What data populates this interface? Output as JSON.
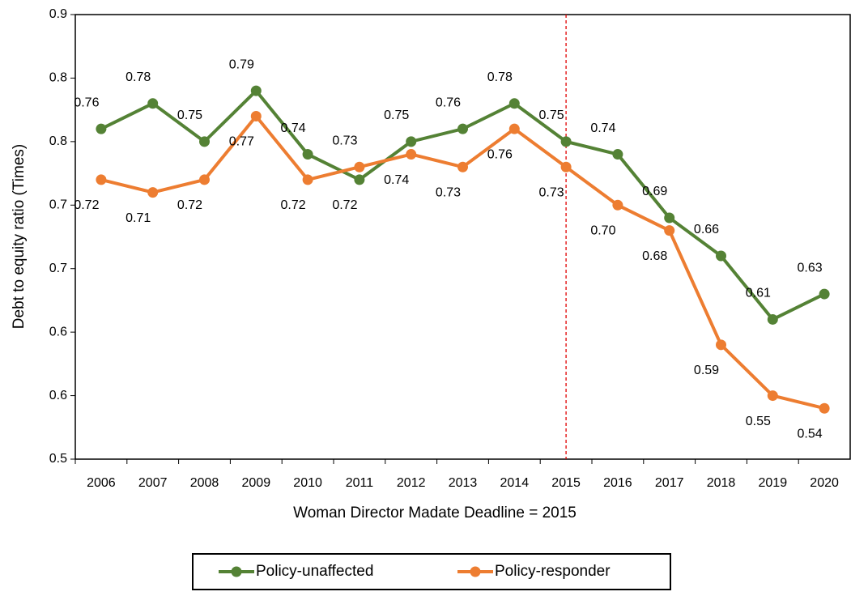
{
  "chart_data": {
    "type": "line",
    "ylabel": "Debt to equity ratio (Times)",
    "xlabel": "Woman Director Madate Deadline = 2015",
    "categories": [
      "2006",
      "2007",
      "2008",
      "2009",
      "2010",
      "2011",
      "2012",
      "2013",
      "2014",
      "2015",
      "2016",
      "2017",
      "2018",
      "2019",
      "2020"
    ],
    "series": [
      {
        "name": "Policy-unaffected",
        "color": "#548235",
        "values": [
          0.76,
          0.78,
          0.75,
          0.79,
          0.74,
          0.72,
          0.75,
          0.76,
          0.78,
          0.75,
          0.74,
          0.69,
          0.66,
          0.61,
          0.63
        ],
        "value_labels": [
          "0.76",
          "0.78",
          "0.75",
          "0.79",
          "0.74",
          "0.72",
          "0.75",
          "0.76",
          "0.78",
          "0.75",
          "0.74",
          "0.69",
          "0.66",
          "0.61",
          "0.63"
        ]
      },
      {
        "name": "Policy-responder",
        "color": "#ed7d31",
        "values": [
          0.72,
          0.71,
          0.72,
          0.77,
          0.72,
          0.73,
          0.74,
          0.73,
          0.76,
          0.73,
          0.7,
          0.68,
          0.59,
          0.55,
          0.54
        ],
        "value_labels": [
          "0.72",
          "0.71",
          "0.72",
          "0.77",
          "0.72",
          "0.73",
          "0.74",
          "0.73",
          "0.76",
          "0.73",
          "0.70",
          "0.68",
          "0.59",
          "0.55",
          "0.54"
        ]
      }
    ],
    "ylim": [
      0.5,
      0.85
    ],
    "yticks": [
      0.5,
      {
        "value": 0.55,
        "label": "0.6"
      },
      0.6,
      {
        "value": 0.65,
        "label": "0.7"
      },
      0.7,
      {
        "value": 0.75,
        "label": "0.8"
      },
      0.8,
      {
        "value": 0.85,
        "label": "0.9"
      }
    ],
    "vline": {
      "category": "2015",
      "color": "#e00000"
    },
    "legend": "bottom"
  }
}
